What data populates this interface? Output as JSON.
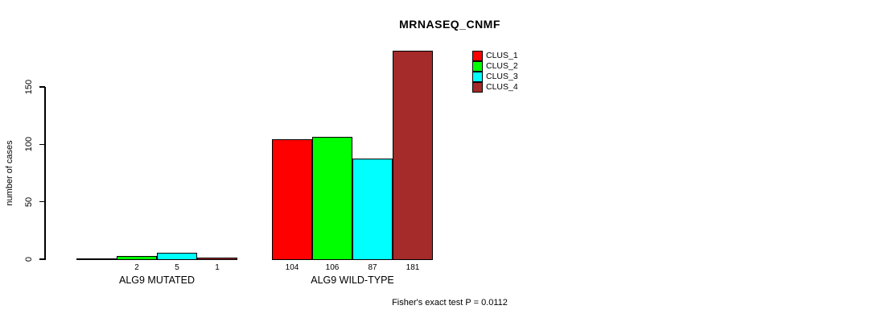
{
  "title": "MRNASEQ_CNMF",
  "footer": "Fisher's exact test P = 0.0112",
  "y_axis": {
    "label": "number of cases",
    "tick_labels": [
      "0",
      "50",
      "100",
      "150"
    ]
  },
  "legend": {
    "items": [
      {
        "label": "CLUS_1",
        "color": "#FF0000"
      },
      {
        "label": "CLUS_2",
        "color": "#00FF00"
      },
      {
        "label": "CLUS_3",
        "color": "#00FFFF"
      },
      {
        "label": "CLUS_4",
        "color": "#A52A2A"
      }
    ]
  },
  "chart_data": {
    "type": "bar",
    "title": "MRNASEQ_CNMF",
    "xlabel": "",
    "ylabel": "number of cases",
    "ylim": [
      0,
      150
    ],
    "yticks": [
      0,
      50,
      100,
      150
    ],
    "grid": false,
    "legend_position": "upper-right-inside",
    "categories": [
      "ALG9 MUTATED",
      "ALG9 WILD-TYPE"
    ],
    "series": [
      {
        "name": "CLUS_1",
        "color": "#FF0000",
        "values": [
          0,
          104
        ]
      },
      {
        "name": "CLUS_2",
        "color": "#00FF00",
        "values": [
          2,
          106
        ]
      },
      {
        "name": "CLUS_3",
        "color": "#00FFFF",
        "values": [
          5,
          87
        ]
      },
      {
        "name": "CLUS_4",
        "color": "#A52A2A",
        "values": [
          1,
          181
        ]
      }
    ],
    "bar_value_labels": [
      [
        "",
        "2",
        "5",
        "1"
      ],
      [
        "104",
        "106",
        "87",
        "181"
      ]
    ],
    "annotation": "Fisher's exact test P = 0.0112"
  }
}
